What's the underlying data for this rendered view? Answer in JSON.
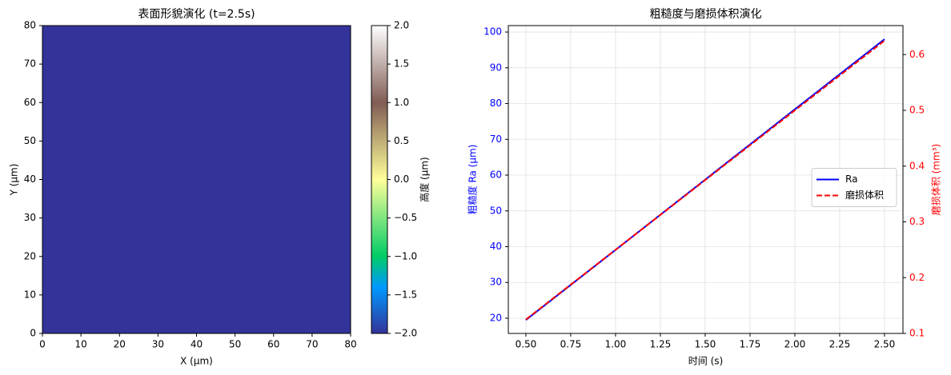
{
  "chart_data": [
    {
      "type": "heatmap",
      "title": "表面形貌演化 (t=2.5s)",
      "xlabel": "X (μm)",
      "ylabel": "Y (μm)",
      "values": [
        [
          -2.0
        ]
      ],
      "xlim": [
        0,
        80
      ],
      "ylim": [
        0,
        80
      ],
      "xticks": [
        0,
        10,
        20,
        30,
        40,
        50,
        60,
        70,
        80
      ],
      "yticks": [
        0,
        10,
        20,
        30,
        40,
        50,
        60,
        70,
        80
      ],
      "colormap": "terrain",
      "clim": [
        -2,
        2
      ],
      "colorbar_label": "高度 (μm)",
      "cticks": [
        {
          "value": -2,
          "label": "−2.0"
        },
        {
          "value": -1.5,
          "label": "−1.5"
        },
        {
          "value": -1,
          "label": "−1.0"
        },
        {
          "value": -0.5,
          "label": "−0.5"
        },
        {
          "value": 0,
          "label": "0.0"
        },
        {
          "value": 0.5,
          "label": "0.5"
        },
        {
          "value": 1,
          "label": "1.0"
        },
        {
          "value": 1.5,
          "label": "1.5"
        },
        {
          "value": 2,
          "label": "2.0"
        }
      ]
    },
    {
      "type": "line",
      "title": "粗糙度与磨损体积演化",
      "xlabel": "时间 (s)",
      "ylabel": "粗糙度 Ra (μm)",
      "y2label": "磨损体积 (mm³)",
      "x": [
        0.5,
        1.0,
        1.5,
        2.0,
        2.5
      ],
      "series": [
        {
          "name": "Ra",
          "color": "#0000ff",
          "linestyle": "solid",
          "values": [
            19.5,
            39.1,
            58.75,
            78.4,
            98
          ]
        },
        {
          "name": "磨损体积",
          "color": "#ff0000",
          "linestyle": "dashed",
          "axis": "y2",
          "values": [
            0.125,
            0.25,
            0.375,
            0.5,
            0.625
          ]
        }
      ],
      "xlim": [
        0.402,
        2.603
      ],
      "ylim": [
        15.75,
        101.8
      ],
      "y2lim": [
        0.1,
        0.652
      ],
      "xticks": [
        {
          "value": 0.5,
          "label": "0.50"
        },
        {
          "value": 0.75,
          "label": "0.75"
        },
        {
          "value": 1,
          "label": "1.00"
        },
        {
          "value": 1.25,
          "label": "1.25"
        },
        {
          "value": 1.5,
          "label": "1.50"
        },
        {
          "value": 1.75,
          "label": "1.75"
        },
        {
          "value": 2,
          "label": "2.00"
        },
        {
          "value": 2.25,
          "label": "2.25"
        },
        {
          "value": 2.5,
          "label": "2.50"
        }
      ],
      "yticks": [
        20,
        30,
        40,
        50,
        60,
        70,
        80,
        90,
        100
      ],
      "y2ticks": [
        0.1,
        0.2,
        0.3,
        0.4,
        0.5,
        0.6
      ],
      "grid": true,
      "legend": "center right"
    }
  ]
}
